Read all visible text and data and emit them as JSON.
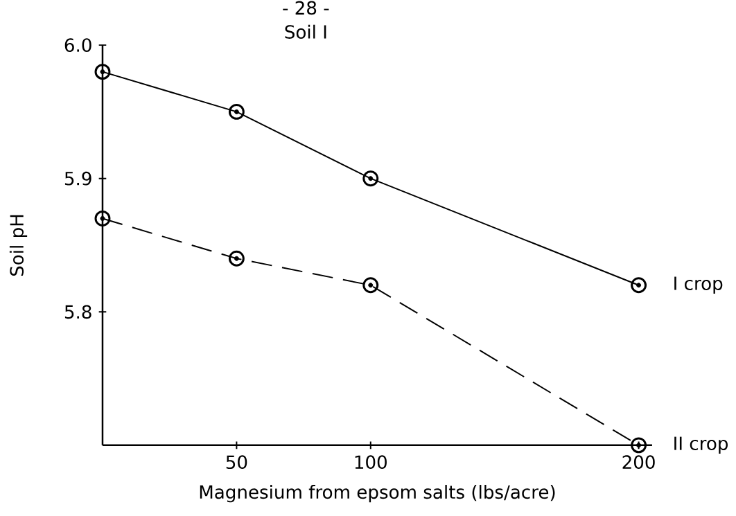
{
  "chart_data": {
    "type": "line",
    "title": "Soil I",
    "annotations": [
      "- 28 -"
    ],
    "xlabel": "Magnesium from epsom salts (lbs/acre)",
    "ylabel": "Soil pH",
    "x": [
      0,
      50,
      100,
      200
    ],
    "series": [
      {
        "name": "I crop",
        "color": "#000000",
        "line_style": "solid",
        "values": [
          5.98,
          5.95,
          5.9,
          5.82
        ]
      },
      {
        "name": "II crop",
        "color": "#000000",
        "line_style": "dashed",
        "values": [
          5.87,
          5.84,
          5.82,
          5.7
        ]
      }
    ],
    "xlim": [
      0,
      205
    ],
    "ylim": [
      5.7,
      6.0
    ],
    "xticks": [
      50,
      100,
      200
    ],
    "yticks": [
      5.8,
      5.9,
      {
        "value": 6.0,
        "label": "6.0"
      }
    ],
    "marker": "circle",
    "grid": false
  }
}
